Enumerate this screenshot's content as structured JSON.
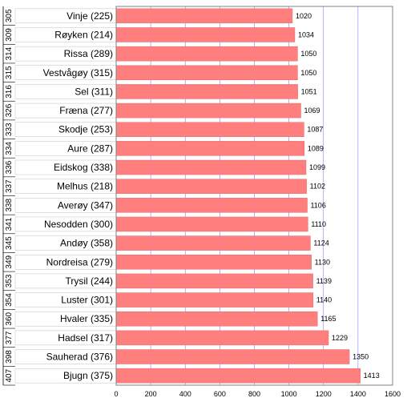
{
  "chart_data": {
    "type": "bar",
    "orientation": "horizontal",
    "ranks": [
      "305",
      "309",
      "314",
      "315",
      "316",
      "326",
      "333",
      "334",
      "336",
      "337",
      "338",
      "341",
      "345",
      "349",
      "353",
      "354",
      "360",
      "377",
      "398",
      "407"
    ],
    "categories": [
      "Vinje (225)",
      "Røyken (214)",
      "Rissa (289)",
      "Vestvågøy (315)",
      "Sel (311)",
      "Fræna (277)",
      "Skodje (253)",
      "Aure (287)",
      "Eidskog (338)",
      "Melhus (218)",
      "Averøy (347)",
      "Nesodden (300)",
      "Andøy (358)",
      "Nordreisa (279)",
      "Trysil (244)",
      "Luster (301)",
      "Hvaler (335)",
      "Hadsel (317)",
      "Sauherad (376)",
      "Bjugn (375)"
    ],
    "values": [
      1020,
      1034,
      1050,
      1050,
      1051,
      1069,
      1087,
      1089,
      1099,
      1102,
      1106,
      1110,
      1124,
      1130,
      1139,
      1140,
      1165,
      1229,
      1350,
      1413
    ],
    "xlim": [
      0,
      1600
    ],
    "xticks": [
      0,
      200,
      400,
      600,
      800,
      1000,
      1200,
      1400,
      1600
    ],
    "bar_color": "#ff7f7f",
    "label_box_color": "#ffffff",
    "grid": true,
    "title": "",
    "xlabel": "",
    "ylabel": ""
  }
}
